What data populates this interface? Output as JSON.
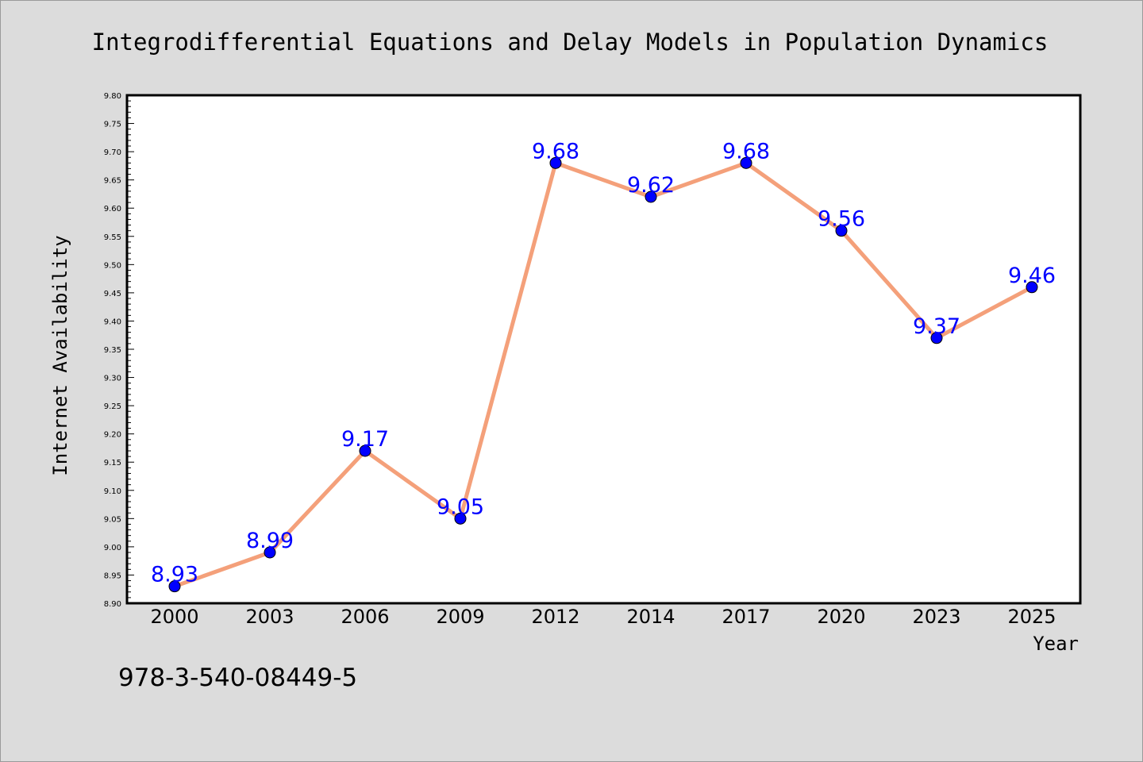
{
  "colors": {
    "background": "#dcdcdc",
    "plot_background": "#ffffff",
    "line": "#f4a07a",
    "marker": "#0000ff",
    "data_label": "#0000ff"
  },
  "footer": {
    "isbn": "978-3-540-08449-5"
  },
  "chart_data": {
    "type": "line",
    "title": "Integrodifferential Equations and Delay Models in Population Dynamics",
    "xlabel": "Year",
    "ylabel": "Internet Availability",
    "categories": [
      "2000",
      "2003",
      "2006",
      "2009",
      "2012",
      "2014",
      "2017",
      "2020",
      "2023",
      "2025"
    ],
    "series": [
      {
        "values": [
          8.93,
          8.99,
          9.17,
          9.05,
          9.68,
          9.62,
          9.68,
          9.56,
          9.37,
          9.46
        ]
      }
    ],
    "ylim": [
      8.9,
      9.8
    ],
    "yticks": [
      "8.90",
      "8.95",
      "9.00",
      "9.05",
      "9.10",
      "9.15",
      "9.20",
      "9.25",
      "9.30",
      "9.35",
      "9.40",
      "9.45",
      "9.50",
      "9.55",
      "9.60",
      "9.65",
      "9.70",
      "9.75",
      "9.80"
    ],
    "grid": false,
    "legend": "none",
    "data_labels": true
  }
}
